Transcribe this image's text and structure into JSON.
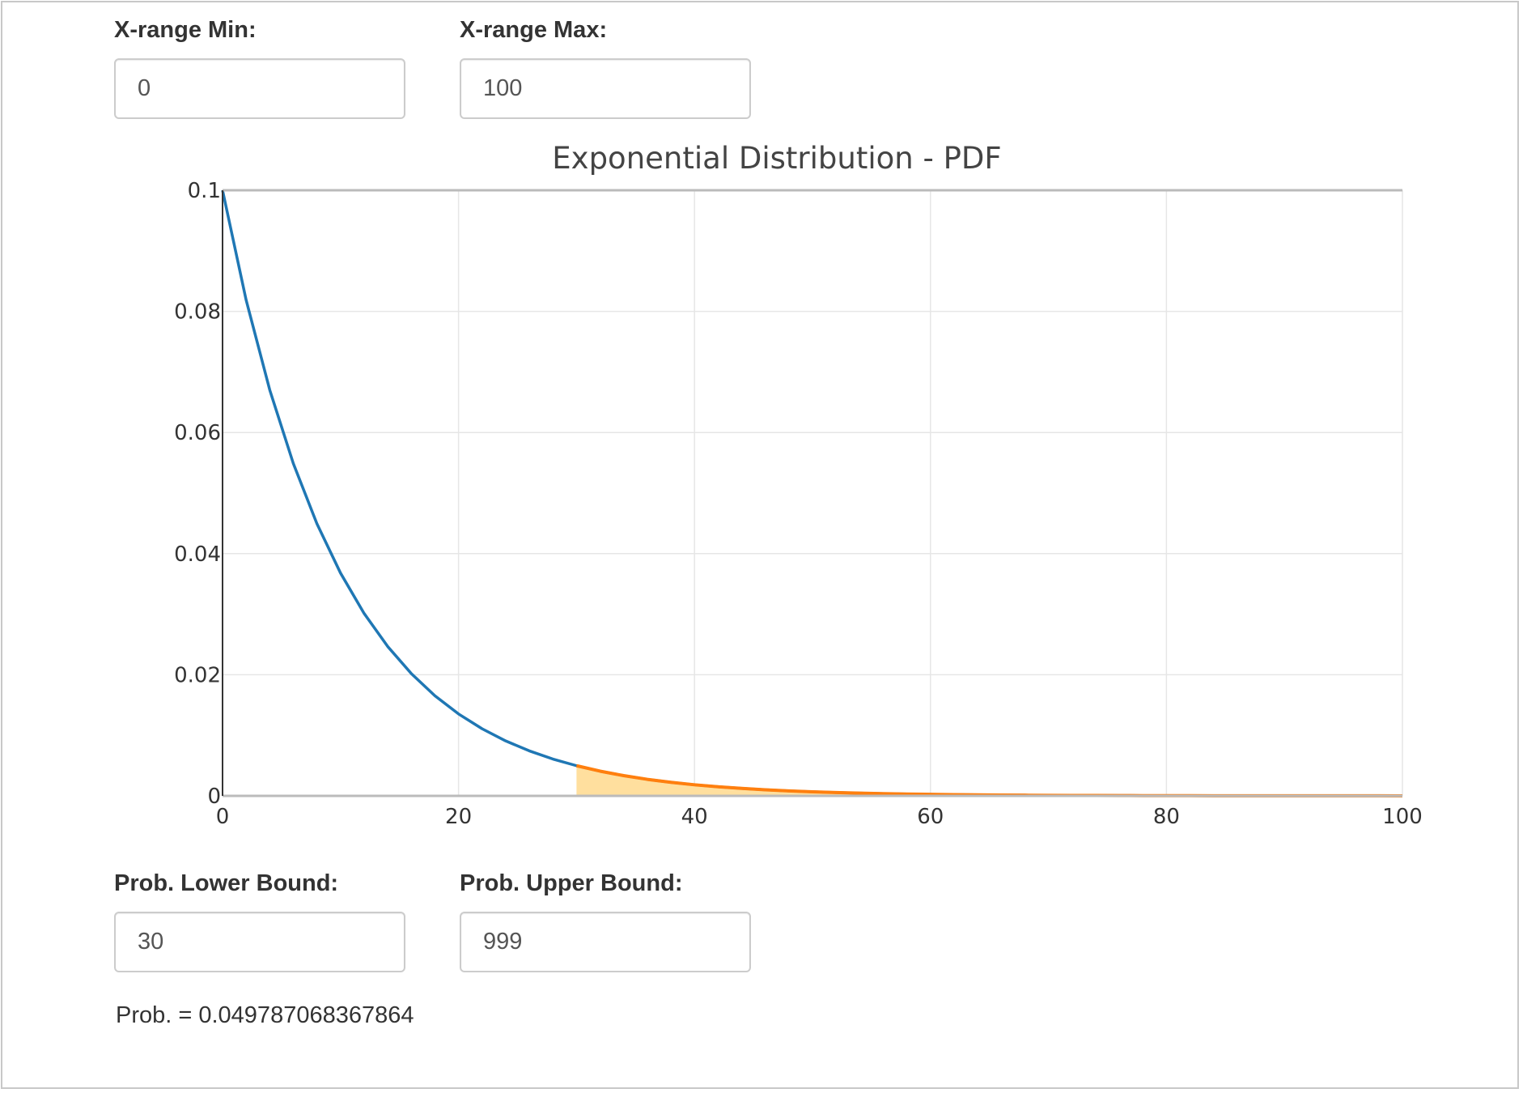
{
  "inputs": {
    "x_min": {
      "label": "X-range Min:",
      "value": "0"
    },
    "x_max": {
      "label": "X-range Max:",
      "value": "100"
    },
    "lower": {
      "label": "Prob. Lower Bound:",
      "value": "30"
    },
    "upper": {
      "label": "Prob. Upper Bound:",
      "value": "999"
    }
  },
  "result": {
    "text": "Prob. = 0.049787068367864"
  },
  "chart_data": {
    "type": "area",
    "title": "Exponential Distribution - PDF",
    "xlabel": "",
    "ylabel": "",
    "xlim": [
      0,
      100
    ],
    "ylim": [
      0,
      0.1
    ],
    "x_ticks": [
      0,
      20,
      40,
      60,
      80,
      100
    ],
    "y_ticks": [
      0,
      0.02,
      0.04,
      0.06,
      0.08,
      0.1
    ],
    "x_tick_labels": [
      "0",
      "20",
      "40",
      "60",
      "80",
      "100"
    ],
    "y_tick_labels": [
      "0",
      "0.02",
      "0.04",
      "0.06",
      "0.08",
      "0.1"
    ],
    "grid": true,
    "legend": "none",
    "series": [
      {
        "kind": "pdf-curve",
        "color": "#1f77b4",
        "x": [
          0,
          2,
          4,
          6,
          8,
          10,
          12,
          14,
          16,
          18,
          20,
          22,
          24,
          26,
          28,
          30,
          32,
          34,
          36,
          38,
          40,
          42,
          44,
          46,
          48,
          50,
          52,
          54,
          56,
          58,
          60,
          62,
          64,
          66,
          68,
          70,
          72,
          74,
          76,
          78,
          80,
          82,
          84,
          86,
          88,
          90,
          92,
          94,
          96,
          98,
          100
        ],
        "y": [
          0.1,
          0.08187,
          0.06703,
          0.05488,
          0.04493,
          0.03679,
          0.03012,
          0.02466,
          0.02019,
          0.01653,
          0.01353,
          0.01108,
          0.00907,
          0.00743,
          0.00608,
          0.00498,
          0.00408,
          0.00334,
          0.00273,
          0.00224,
          0.00183,
          0.0015,
          0.00123,
          0.00101,
          0.00082,
          0.00067,
          0.00055,
          0.00045,
          0.00037,
          0.0003,
          0.00025,
          0.0002,
          0.00017,
          0.00014,
          0.00011,
          9e-05,
          7e-05,
          6e-05,
          5e-05,
          4e-05,
          3e-05,
          3e-05,
          2e-05,
          2e-05,
          2e-05,
          1e-05,
          1e-05,
          1e-05,
          1e-05,
          1e-05,
          0.0
        ]
      },
      {
        "kind": "probability-region",
        "color": "#ff7f0e",
        "fill_color": "#ffdf9e",
        "x": [
          30,
          32,
          34,
          36,
          38,
          40,
          42,
          44,
          46,
          48,
          50,
          52,
          54,
          56,
          58,
          60,
          62,
          64,
          66,
          68,
          70,
          72,
          74,
          76,
          78,
          80,
          82,
          84,
          86,
          88,
          90,
          92,
          94,
          96,
          98,
          100
        ],
        "y": [
          0.00498,
          0.00408,
          0.00334,
          0.00273,
          0.00224,
          0.00183,
          0.0015,
          0.00123,
          0.00101,
          0.00082,
          0.00067,
          0.00055,
          0.00045,
          0.00037,
          0.0003,
          0.00025,
          0.0002,
          0.00017,
          0.00014,
          0.00011,
          9e-05,
          7e-05,
          6e-05,
          5e-05,
          4e-05,
          3e-05,
          3e-05,
          2e-05,
          2e-05,
          2e-05,
          1e-05,
          1e-05,
          1e-05,
          1e-05,
          1e-05,
          0.0
        ]
      }
    ]
  }
}
